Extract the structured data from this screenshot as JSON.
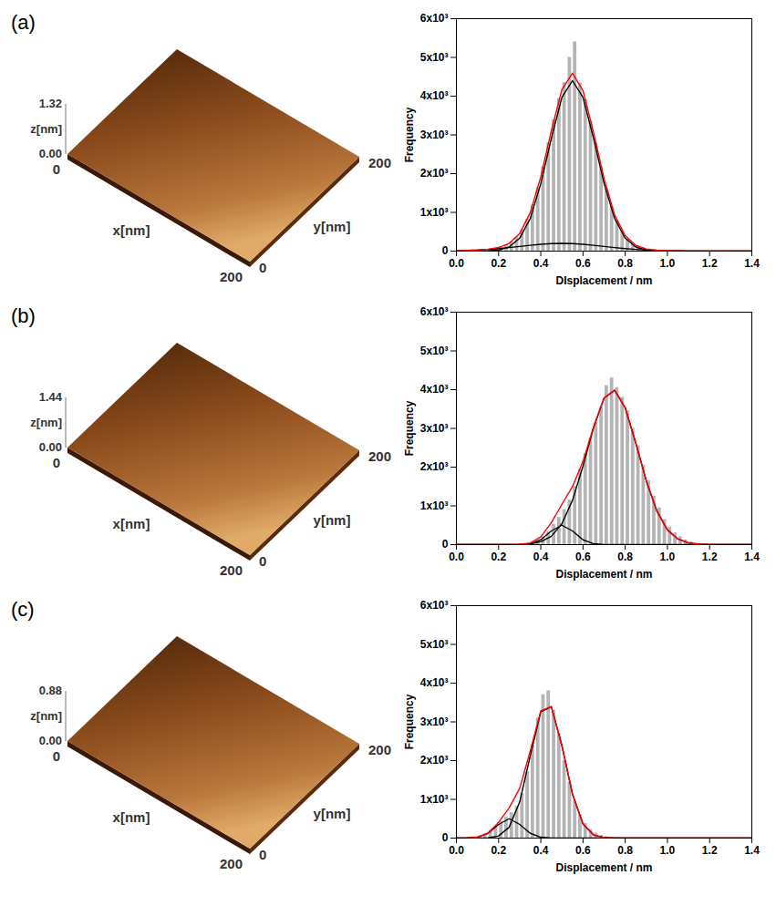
{
  "chart_data": [
    {
      "type": "surface",
      "title": "(a)",
      "xlabel": "x[nm]",
      "ylabel": "y[nm]",
      "zlabel": "z[nm]",
      "xlim": [
        0,
        200
      ],
      "ylim": [
        0,
        200
      ],
      "zlim": [
        0,
        1.32
      ],
      "xticks": [
        0,
        200
      ],
      "yticks": [
        0,
        200
      ],
      "zticks": [
        {
          "value": 0,
          "label": "0.00"
        },
        1.32
      ]
    },
    {
      "type": "histogram",
      "xlabel": "DIsplacement / nm",
      "ylabel": "Frequency",
      "color": "#b4b4b4",
      "bins": [
        0,
        0.025,
        0.05,
        0.075,
        0.1,
        0.125,
        0.15,
        0.175,
        0.2,
        0.225,
        0.25,
        0.275,
        0.3,
        0.325,
        0.35,
        0.375,
        0.4,
        0.425,
        0.45,
        0.475,
        0.5,
        0.525,
        0.55,
        0.575,
        0.6,
        0.625,
        0.65,
        0.675,
        0.7,
        0.725,
        0.75,
        0.775,
        0.8,
        0.825,
        0.85,
        0.875,
        0.9,
        0.925,
        0.95,
        0.975,
        1,
        1.025,
        1.05,
        1.075,
        1.1,
        1.125,
        1.15,
        1.175,
        1.2,
        1.225,
        1.25,
        1.275,
        1.3,
        1.325,
        1.35,
        1.375,
        1.4
      ],
      "values": [
        0,
        0,
        0,
        0,
        5,
        10,
        40,
        70,
        110,
        160,
        240,
        360,
        550,
        820,
        1190,
        1640,
        2190,
        2800,
        3390,
        3940,
        4350,
        5000,
        5400,
        4340,
        3910,
        3360,
        2770,
        2160,
        1600,
        1140,
        780,
        510,
        320,
        200,
        125,
        75,
        46,
        30,
        24,
        19,
        15,
        12,
        9,
        7,
        5,
        4,
        3,
        3,
        2,
        2,
        1,
        1,
        0,
        0,
        0,
        0
      ],
      "x": [
        0,
        0.05,
        0.1,
        0.15,
        0.2,
        0.25,
        0.3,
        0.35,
        0.4,
        0.45,
        0.5,
        0.55,
        0.6,
        0.65,
        0.7,
        0.75,
        0.8,
        0.85,
        0.9,
        0.95,
        1,
        1.05,
        1.1,
        1.15,
        1.2,
        1.25,
        1.3,
        1.35,
        1.4
      ],
      "series": [
        {
          "type": "line",
          "color": "#000000",
          "values": [
            0,
            0,
            1,
            6,
            28,
            106,
            334,
            841,
            1744,
            2912,
            3968,
            4400,
            3968,
            2912,
            1744,
            841,
            334,
            106,
            28,
            6,
            1,
            0,
            0,
            0,
            0,
            0,
            0,
            0,
            0
          ]
        },
        {
          "type": "line",
          "color": "#000000",
          "values": [
            9,
            16,
            27,
            43,
            65,
            92,
            121,
            151,
            176,
            194,
            200,
            194,
            176,
            151,
            121,
            92,
            65,
            43,
            27,
            16,
            9,
            5,
            2,
            1,
            1,
            0,
            0,
            0,
            0
          ]
        },
        {
          "type": "line",
          "color": "#ff0000",
          "values": [
            9,
            16,
            28,
            49,
            93,
            198,
            455,
            992,
            1920,
            3106,
            4168,
            4594,
            4144,
            3063,
            1865,
            933,
            399,
            149,
            55,
            22,
            10,
            5,
            2,
            1,
            1,
            0,
            0,
            0,
            0
          ]
        }
      ],
      "xlim": [
        0,
        1.4
      ],
      "ylim": [
        0,
        6000
      ],
      "xticks": [
        {
          "value": 0,
          "label": "0.0"
        },
        0.2,
        0.4,
        0.6,
        0.8,
        {
          "value": 1,
          "label": "1.0"
        },
        1.2,
        1.4
      ],
      "yticks": [
        0,
        {
          "value": 1000,
          "label": "1x10³"
        },
        {
          "value": 2000,
          "label": "2x10³"
        },
        {
          "value": 3000,
          "label": "3x10³"
        },
        {
          "value": 4000,
          "label": "4x10³"
        },
        {
          "value": 5000,
          "label": "5x10³"
        },
        {
          "value": 6000,
          "label": "6x10³"
        }
      ]
    },
    {
      "type": "surface",
      "title": "(b)",
      "xlabel": "x[nm]",
      "ylabel": "y[nm]",
      "zlabel": "z[nm]",
      "xlim": [
        0,
        200
      ],
      "ylim": [
        0,
        200
      ],
      "zlim": [
        0,
        1.44
      ],
      "xticks": [
        0,
        200
      ],
      "yticks": [
        0,
        200
      ],
      "zticks": [
        {
          "value": 0,
          "label": "0.00"
        },
        1.44
      ]
    },
    {
      "type": "histogram",
      "xlabel": "Displacement / nm",
      "ylabel": "Frequency",
      "color": "#b4b4b4",
      "bins": [
        0,
        0.025,
        0.05,
        0.075,
        0.1,
        0.125,
        0.15,
        0.175,
        0.2,
        0.225,
        0.25,
        0.275,
        0.3,
        0.325,
        0.35,
        0.375,
        0.4,
        0.425,
        0.45,
        0.475,
        0.5,
        0.525,
        0.55,
        0.575,
        0.6,
        0.625,
        0.65,
        0.675,
        0.7,
        0.725,
        0.75,
        0.775,
        0.8,
        0.825,
        0.85,
        0.875,
        0.9,
        0.925,
        0.95,
        0.975,
        1,
        1.025,
        1.05,
        1.075,
        1.1,
        1.125,
        1.15,
        1.175,
        1.2,
        1.225,
        1.25,
        1.275,
        1.3,
        1.325,
        1.35,
        1.375,
        1.4
      ],
      "values": [
        0,
        0,
        0,
        0,
        0,
        0,
        0,
        0,
        0,
        0,
        0,
        0,
        10,
        20,
        40,
        100,
        190,
        320,
        520,
        700,
        900,
        1150,
        1500,
        1950,
        2350,
        2750,
        3150,
        3550,
        4100,
        4300,
        4050,
        3800,
        3450,
        3000,
        2550,
        2050,
        1650,
        1250,
        950,
        650,
        450,
        300,
        200,
        120,
        70,
        30,
        10,
        0,
        0,
        0,
        0,
        0,
        0,
        0,
        0,
        0
      ],
      "x": [
        0,
        0.05,
        0.1,
        0.15,
        0.2,
        0.25,
        0.3,
        0.35,
        0.4,
        0.45,
        0.5,
        0.55,
        0.6,
        0.65,
        0.7,
        0.75,
        0.8,
        0.85,
        0.9,
        0.95,
        1,
        1.05,
        1.1,
        1.15,
        1.2,
        1.25,
        1.3,
        1.35,
        1.4
      ],
      "series": [
        {
          "type": "line",
          "color": "#000000",
          "values": [
            0,
            0,
            0,
            0,
            0,
            1,
            5,
            20,
            73,
            214,
            541,
            1143,
            2026,
            3020,
            3783,
            3986,
            3530,
            2623,
            1643,
            866,
            380,
            143,
            44,
            12,
            3,
            1,
            0,
            0,
            0
          ]
        },
        {
          "type": "line",
          "color": "#000000",
          "values": [
            0,
            0,
            0,
            0,
            0,
            0,
            2,
            22,
            124,
            353,
            500,
            353,
            124,
            22,
            2,
            0,
            0,
            0,
            0,
            0,
            0,
            0,
            0,
            0,
            0,
            0,
            0,
            0,
            0
          ]
        },
        {
          "type": "line",
          "color": "#ff0000",
          "values": [
            0,
            0,
            0,
            0,
            0,
            1,
            7,
            42,
            197,
            567,
            1041,
            1496,
            2150,
            3042,
            3785,
            3986,
            3530,
            2623,
            1643,
            866,
            380,
            143,
            44,
            12,
            3,
            1,
            0,
            0,
            0
          ]
        }
      ],
      "xlim": [
        0,
        1.4
      ],
      "ylim": [
        0,
        6000
      ],
      "xticks": [
        {
          "value": 0,
          "label": "0.0"
        },
        0.2,
        0.4,
        0.6,
        0.8,
        {
          "value": 1,
          "label": "1.0"
        },
        1.2,
        1.4
      ],
      "yticks": [
        0,
        {
          "value": 1000,
          "label": "1x10³"
        },
        {
          "value": 2000,
          "label": "2x10³"
        },
        {
          "value": 3000,
          "label": "3x10³"
        },
        {
          "value": 4000,
          "label": "4x10³"
        },
        {
          "value": 5000,
          "label": "5x10³"
        },
        {
          "value": 6000,
          "label": "6x10³"
        }
      ]
    },
    {
      "type": "surface",
      "title": "(c)",
      "xlabel": "x[nm]",
      "ylabel": "y[nm]",
      "zlabel": "z[nm]",
      "xlim": [
        0,
        200
      ],
      "ylim": [
        0,
        200
      ],
      "zlim": [
        0,
        0.88
      ],
      "xticks": [
        0,
        200
      ],
      "yticks": [
        0,
        200
      ],
      "zticks": [
        {
          "value": 0,
          "label": "0.00"
        },
        0.88
      ]
    },
    {
      "type": "histogram",
      "xlabel": "Displacement / nm",
      "ylabel": "Frequency",
      "color": "#b4b4b4",
      "bins": [
        0,
        0.025,
        0.05,
        0.075,
        0.1,
        0.125,
        0.15,
        0.175,
        0.2,
        0.225,
        0.25,
        0.275,
        0.3,
        0.325,
        0.35,
        0.375,
        0.4,
        0.425,
        0.45,
        0.475,
        0.5,
        0.525,
        0.55,
        0.575,
        0.6,
        0.625,
        0.65,
        0.675,
        0.7,
        0.725,
        0.75,
        0.775,
        0.8,
        0.825,
        0.85,
        0.875,
        0.9,
        0.925,
        0.95,
        0.975,
        1,
        1.025,
        1.05,
        1.075,
        1.1,
        1.125,
        1.15,
        1.175,
        1.2,
        1.225,
        1.25,
        1.275,
        1.3,
        1.325,
        1.35,
        1.375,
        1.4
      ],
      "values": [
        0,
        5,
        15,
        30,
        60,
        110,
        200,
        300,
        420,
        540,
        650,
        820,
        1150,
        1700,
        2400,
        3100,
        3700,
        3800,
        3300,
        2700,
        2000,
        1450,
        950,
        600,
        380,
        220,
        130,
        70,
        35,
        15,
        8,
        4,
        2,
        1,
        0,
        0,
        0,
        0,
        0,
        0,
        0,
        0,
        0,
        0,
        0,
        0,
        0,
        0,
        0,
        0,
        0,
        0,
        0,
        0,
        0,
        0
      ],
      "x": [
        0,
        0.05,
        0.1,
        0.15,
        0.2,
        0.25,
        0.3,
        0.35,
        0.4,
        0.45,
        0.5,
        0.55,
        0.6,
        0.65,
        0.7,
        0.75,
        0.8,
        0.85,
        0.9,
        0.95,
        1,
        1.05,
        1.1,
        1.15,
        1.2,
        1.25,
        1.3,
        1.35,
        1.4
      ],
      "series": [
        {
          "type": "line",
          "color": "#000000",
          "values": [
            0,
            0,
            0,
            8,
            55,
            279,
            933,
            2123,
            3262,
            3392,
            2388,
            1137,
            363,
            80,
            12,
            1,
            0,
            0,
            0,
            0,
            0,
            0,
            0,
            0,
            0,
            0,
            0,
            0,
            0
          ]
        },
        {
          "type": "line",
          "color": "#000000",
          "values": [
            0,
            2,
            22,
            124,
            353,
            500,
            353,
            124,
            22,
            2,
            0,
            0,
            0,
            0,
            0,
            0,
            0,
            0,
            0,
            0,
            0,
            0,
            0,
            0,
            0,
            0,
            0,
            0,
            0
          ]
        },
        {
          "type": "line",
          "color": "#ff0000",
          "values": [
            0,
            2,
            22,
            132,
            408,
            779,
            1286,
            2247,
            3284,
            3394,
            2388,
            1137,
            363,
            80,
            12,
            1,
            0,
            0,
            0,
            0,
            0,
            0,
            0,
            0,
            0,
            0,
            0,
            0,
            0
          ]
        }
      ],
      "xlim": [
        0,
        1.4
      ],
      "ylim": [
        0,
        6000
      ],
      "xticks": [
        {
          "value": 0,
          "label": "0.0"
        },
        0.2,
        0.4,
        0.6,
        0.8,
        {
          "value": 1,
          "label": "1.0"
        },
        1.2,
        1.4
      ],
      "yticks": [
        0,
        {
          "value": 1000,
          "label": "1x10³"
        },
        {
          "value": 2000,
          "label": "2x10³"
        },
        {
          "value": 3000,
          "label": "3x10³"
        },
        {
          "value": 4000,
          "label": "4x10³"
        },
        {
          "value": 5000,
          "label": "5x10³"
        },
        {
          "value": 6000,
          "label": "6x10³"
        }
      ]
    }
  ]
}
